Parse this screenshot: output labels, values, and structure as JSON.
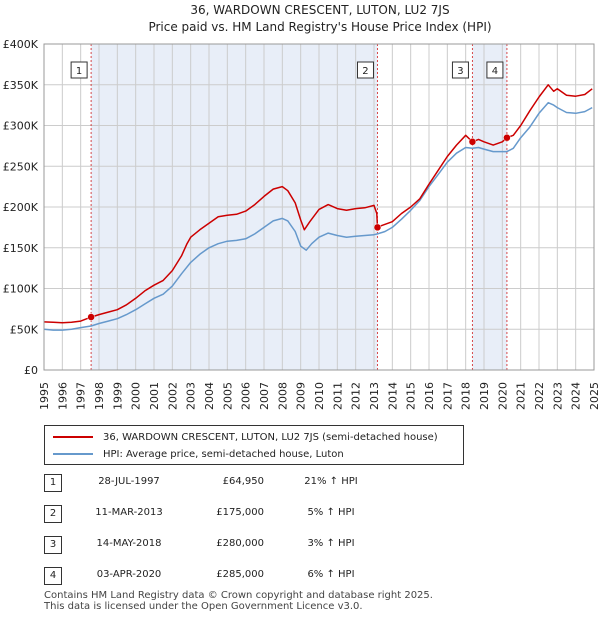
{
  "chart_data": {
    "type": "line",
    "title": "36, WARDOWN CRESCENT, LUTON, LU2 7JS",
    "subtitle": "Price paid vs. HM Land Registry's House Price Index (HPI)",
    "xlim": [
      1995,
      2025
    ],
    "ylim": [
      0,
      400000
    ],
    "x_ticks": [
      "1995",
      "1996",
      "1997",
      "1998",
      "1999",
      "2000",
      "2001",
      "2002",
      "2003",
      "2004",
      "2005",
      "2006",
      "2007",
      "2008",
      "2009",
      "2010",
      "2011",
      "2012",
      "2013",
      "2014",
      "2015",
      "2016",
      "2017",
      "2018",
      "2019",
      "2020",
      "2021",
      "2022",
      "2023",
      "2024",
      "2025"
    ],
    "y_ticks": [
      {
        "value": 0,
        "label": "£0"
      },
      {
        "value": 50000,
        "label": "£50K"
      },
      {
        "value": 100000,
        "label": "£100K"
      },
      {
        "value": 150000,
        "label": "£150K"
      },
      {
        "value": 200000,
        "label": "£200K"
      },
      {
        "value": 250000,
        "label": "£250K"
      },
      {
        "value": 300000,
        "label": "£300K"
      },
      {
        "value": 350000,
        "label": "£350K"
      },
      {
        "value": 400000,
        "label": "£400K"
      }
    ],
    "shaded_spans": [
      [
        1997.57,
        2013.19
      ],
      [
        2018.37,
        2020.25
      ]
    ],
    "series": [
      {
        "name": "36, WARDOWN CRESCENT, LUTON, LU2 7JS (semi-detached house)",
        "color": "#cc0000",
        "points": [
          [
            1995.0,
            59000
          ],
          [
            1995.5,
            58500
          ],
          [
            1996.0,
            58000
          ],
          [
            1996.5,
            58500
          ],
          [
            1997.0,
            60000
          ],
          [
            1997.57,
            64950
          ],
          [
            1998.0,
            68000
          ],
          [
            1998.5,
            71000
          ],
          [
            1999.0,
            74000
          ],
          [
            1999.5,
            80000
          ],
          [
            2000.0,
            88000
          ],
          [
            2000.5,
            97000
          ],
          [
            2001.0,
            104000
          ],
          [
            2001.5,
            110000
          ],
          [
            2002.0,
            122000
          ],
          [
            2002.5,
            140000
          ],
          [
            2002.8,
            155000
          ],
          [
            2003.0,
            163000
          ],
          [
            2003.5,
            172000
          ],
          [
            2004.0,
            180000
          ],
          [
            2004.5,
            188000
          ],
          [
            2005.0,
            190000
          ],
          [
            2005.5,
            191000
          ],
          [
            2006.0,
            195000
          ],
          [
            2006.5,
            203000
          ],
          [
            2007.0,
            213000
          ],
          [
            2007.5,
            222000
          ],
          [
            2008.0,
            225000
          ],
          [
            2008.3,
            220000
          ],
          [
            2008.7,
            205000
          ],
          [
            2009.0,
            184000
          ],
          [
            2009.2,
            172000
          ],
          [
            2009.5,
            182000
          ],
          [
            2010.0,
            197000
          ],
          [
            2010.5,
            203000
          ],
          [
            2011.0,
            198000
          ],
          [
            2011.5,
            196000
          ],
          [
            2012.0,
            198000
          ],
          [
            2012.5,
            199000
          ],
          [
            2013.0,
            202000
          ],
          [
            2013.15,
            192000
          ],
          [
            2013.19,
            175000
          ],
          [
            2013.4,
            177000
          ],
          [
            2014.0,
            182000
          ],
          [
            2014.5,
            192000
          ],
          [
            2015.0,
            200000
          ],
          [
            2015.5,
            210000
          ],
          [
            2016.0,
            228000
          ],
          [
            2016.5,
            245000
          ],
          [
            2017.0,
            262000
          ],
          [
            2017.5,
            276000
          ],
          [
            2018.0,
            288000
          ],
          [
            2018.37,
            280000
          ],
          [
            2018.7,
            283000
          ],
          [
            2019.0,
            280000
          ],
          [
            2019.5,
            276000
          ],
          [
            2020.0,
            280000
          ],
          [
            2020.25,
            285000
          ],
          [
            2020.6,
            288000
          ],
          [
            2021.0,
            300000
          ],
          [
            2021.5,
            318000
          ],
          [
            2022.0,
            335000
          ],
          [
            2022.5,
            350000
          ],
          [
            2022.8,
            342000
          ],
          [
            2023.0,
            345000
          ],
          [
            2023.5,
            337000
          ],
          [
            2024.0,
            336000
          ],
          [
            2024.5,
            338000
          ],
          [
            2024.9,
            345000
          ]
        ]
      },
      {
        "name": "HPI: Average price, semi-detached house, Luton",
        "color": "#6699cc",
        "points": [
          [
            1995.0,
            50000
          ],
          [
            1995.5,
            49000
          ],
          [
            1996.0,
            49000
          ],
          [
            1996.5,
            50000
          ],
          [
            1997.0,
            52000
          ],
          [
            1997.57,
            54000
          ],
          [
            1998.0,
            57000
          ],
          [
            1998.5,
            60000
          ],
          [
            1999.0,
            63000
          ],
          [
            1999.5,
            68000
          ],
          [
            2000.0,
            74000
          ],
          [
            2000.5,
            81000
          ],
          [
            2001.0,
            88000
          ],
          [
            2001.5,
            93000
          ],
          [
            2002.0,
            103000
          ],
          [
            2002.5,
            118000
          ],
          [
            2003.0,
            132000
          ],
          [
            2003.5,
            142000
          ],
          [
            2004.0,
            150000
          ],
          [
            2004.5,
            155000
          ],
          [
            2005.0,
            158000
          ],
          [
            2005.5,
            159000
          ],
          [
            2006.0,
            161000
          ],
          [
            2006.5,
            167000
          ],
          [
            2007.0,
            175000
          ],
          [
            2007.5,
            183000
          ],
          [
            2008.0,
            186000
          ],
          [
            2008.3,
            183000
          ],
          [
            2008.7,
            170000
          ],
          [
            2009.0,
            152000
          ],
          [
            2009.3,
            147000
          ],
          [
            2009.6,
            155000
          ],
          [
            2010.0,
            163000
          ],
          [
            2010.5,
            168000
          ],
          [
            2011.0,
            165000
          ],
          [
            2011.5,
            163000
          ],
          [
            2012.0,
            164000
          ],
          [
            2012.5,
            165000
          ],
          [
            2013.0,
            166000
          ],
          [
            2013.19,
            167000
          ],
          [
            2013.6,
            170000
          ],
          [
            2014.0,
            175000
          ],
          [
            2014.5,
            185000
          ],
          [
            2015.0,
            196000
          ],
          [
            2015.5,
            208000
          ],
          [
            2016.0,
            225000
          ],
          [
            2016.5,
            240000
          ],
          [
            2017.0,
            255000
          ],
          [
            2017.5,
            266000
          ],
          [
            2018.0,
            273000
          ],
          [
            2018.37,
            272000
          ],
          [
            2018.7,
            273000
          ],
          [
            2019.0,
            271000
          ],
          [
            2019.5,
            268000
          ],
          [
            2020.0,
            268000
          ],
          [
            2020.25,
            268000
          ],
          [
            2020.6,
            272000
          ],
          [
            2021.0,
            285000
          ],
          [
            2021.5,
            298000
          ],
          [
            2022.0,
            315000
          ],
          [
            2022.5,
            328000
          ],
          [
            2022.8,
            325000
          ],
          [
            2023.0,
            322000
          ],
          [
            2023.5,
            316000
          ],
          [
            2024.0,
            315000
          ],
          [
            2024.5,
            317000
          ],
          [
            2024.9,
            322000
          ]
        ]
      }
    ],
    "sales": [
      {
        "id": "1",
        "x": 1997.57,
        "price": 64950
      },
      {
        "id": "2",
        "x": 2013.19,
        "price": 175000
      },
      {
        "id": "3",
        "x": 2018.37,
        "price": 280000
      },
      {
        "id": "4",
        "x": 2020.25,
        "price": 285000
      }
    ]
  },
  "legend": {
    "property_label": "36, WARDOWN CRESCENT, LUTON, LU2 7JS (semi-detached house)",
    "hpi_label": "HPI: Average price, semi-detached house, Luton"
  },
  "transactions": [
    {
      "num": "1",
      "date": "28-JUL-1997",
      "price": "£64,950",
      "hpi": "21% ↑ HPI"
    },
    {
      "num": "2",
      "date": "11-MAR-2013",
      "price": "£175,000",
      "hpi": "5% ↑ HPI"
    },
    {
      "num": "3",
      "date": "14-MAY-2018",
      "price": "£280,000",
      "hpi": "3% ↑ HPI"
    },
    {
      "num": "4",
      "date": "03-APR-2020",
      "price": "£285,000",
      "hpi": "6% ↑ HPI"
    }
  ],
  "footer": {
    "line1": "Contains HM Land Registry data © Crown copyright and database right 2025.",
    "line2": "This data is licensed under the Open Government Licence v3.0."
  },
  "colors": {
    "property": "#cc0000",
    "hpi": "#6699cc",
    "shade": "#e8eef8",
    "grid": "#cccccc"
  }
}
